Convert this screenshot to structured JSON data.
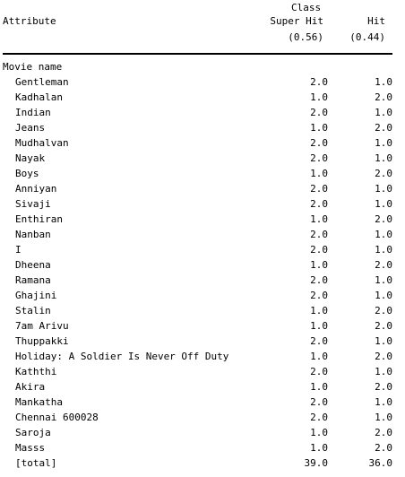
{
  "header": {
    "class_label": "Class",
    "attribute_label": "Attribute",
    "col1_name": "Super Hit",
    "col2_name": "Hit",
    "col1_prior": "(0.56)",
    "col2_prior": "(0.44)"
  },
  "section_label": "Movie name",
  "rows": [
    {
      "name": "Gentleman",
      "super_hit": "2.0",
      "hit": "1.0"
    },
    {
      "name": "Kadhalan",
      "super_hit": "1.0",
      "hit": "2.0"
    },
    {
      "name": "Indian",
      "super_hit": "2.0",
      "hit": "1.0"
    },
    {
      "name": "Jeans",
      "super_hit": "1.0",
      "hit": "2.0"
    },
    {
      "name": "Mudhalvan",
      "super_hit": "2.0",
      "hit": "1.0"
    },
    {
      "name": "Nayak",
      "super_hit": "2.0",
      "hit": "1.0"
    },
    {
      "name": "Boys",
      "super_hit": "1.0",
      "hit": "2.0"
    },
    {
      "name": "Anniyan",
      "super_hit": "2.0",
      "hit": "1.0"
    },
    {
      "name": "Sivaji",
      "super_hit": "2.0",
      "hit": "1.0"
    },
    {
      "name": "Enthiran",
      "super_hit": "1.0",
      "hit": "2.0"
    },
    {
      "name": "Nanban",
      "super_hit": "2.0",
      "hit": "1.0"
    },
    {
      "name": "I",
      "super_hit": "2.0",
      "hit": "1.0"
    },
    {
      "name": "Dheena",
      "super_hit": "1.0",
      "hit": "2.0"
    },
    {
      "name": "Ramana",
      "super_hit": "2.0",
      "hit": "1.0"
    },
    {
      "name": "Ghajini",
      "super_hit": "2.0",
      "hit": "1.0"
    },
    {
      "name": "Stalin",
      "super_hit": "1.0",
      "hit": "2.0"
    },
    {
      "name": "7am Arivu",
      "super_hit": "1.0",
      "hit": "2.0"
    },
    {
      "name": "Thuppakki",
      "super_hit": "2.0",
      "hit": "1.0"
    },
    {
      "name": "Holiday: A Soldier Is Never Off Duty",
      "super_hit": "1.0",
      "hit": "2.0"
    },
    {
      "name": "Kaththi",
      "super_hit": "2.0",
      "hit": "1.0"
    },
    {
      "name": "Akira",
      "super_hit": "1.0",
      "hit": "2.0"
    },
    {
      "name": "Mankatha",
      "super_hit": "2.0",
      "hit": "1.0"
    },
    {
      "name": "Chennai 600028",
      "super_hit": "2.0",
      "hit": "1.0"
    },
    {
      "name": "Saroja",
      "super_hit": "1.0",
      "hit": "2.0"
    },
    {
      "name": "Masss",
      "super_hit": "1.0",
      "hit": "2.0"
    }
  ],
  "total": {
    "name": "[total]",
    "super_hit": "39.0",
    "hit": "36.0"
  }
}
